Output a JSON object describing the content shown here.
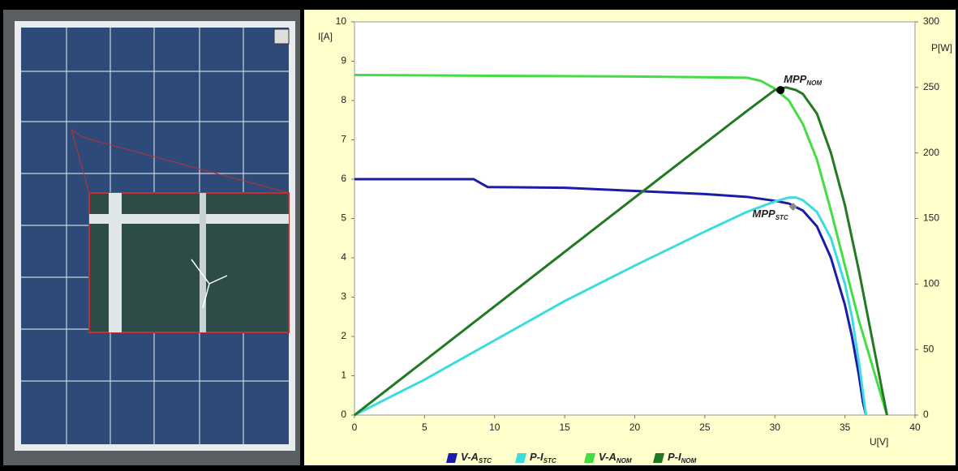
{
  "chart_data": {
    "type": "line",
    "xlabel": "U[V]",
    "ylabel": "I[A]",
    "y2label": "P[W]",
    "xlim": [
      0,
      40
    ],
    "xticks": [
      0,
      5,
      10,
      15,
      20,
      25,
      30,
      35,
      40
    ],
    "ylim": [
      0,
      10
    ],
    "yticks": [
      0,
      1,
      2,
      3,
      4,
      5,
      6,
      7,
      8,
      9,
      10
    ],
    "y2lim": [
      0,
      300
    ],
    "y2ticks": [
      0,
      50,
      100,
      150,
      200,
      250,
      300
    ],
    "grid": false,
    "series": [
      {
        "name": "V-A",
        "subscript": "STC",
        "color": "#1c1ca8",
        "x": [
          0,
          8.5,
          9.5,
          15,
          20,
          25,
          28,
          30,
          31,
          32,
          33,
          34,
          35,
          35.5,
          36,
          36.3,
          36.5
        ],
        "values": [
          6,
          6,
          5.8,
          5.78,
          5.7,
          5.62,
          5.55,
          5.45,
          5.38,
          5.2,
          4.8,
          4,
          2.8,
          2,
          1,
          0.3,
          0
        ]
      },
      {
        "name": "P-I",
        "subscript": "STC",
        "color": "#3ddcdc",
        "axis": "y2",
        "x": [
          0,
          5,
          10,
          15,
          20,
          25,
          28,
          30,
          31,
          31.5,
          32,
          33,
          34,
          35,
          35.5,
          36,
          36.5
        ],
        "values": [
          0,
          27,
          57,
          87,
          114,
          140,
          155,
          163,
          166,
          166,
          164,
          155,
          135,
          100,
          75,
          40,
          0
        ]
      },
      {
        "name": "V-A",
        "subscript": "NOM",
        "color": "#44dd44",
        "x": [
          0,
          10,
          20,
          28,
          29,
          30,
          31,
          32,
          33,
          34,
          35,
          36,
          37,
          38
        ],
        "values": [
          8.65,
          8.63,
          8.61,
          8.58,
          8.5,
          8.3,
          8,
          7.4,
          6.5,
          5.2,
          3.8,
          2.4,
          1.2,
          0
        ]
      },
      {
        "name": "P-I",
        "subscript": "NOM",
        "color": "#217a21",
        "axis": "y2",
        "x": [
          0,
          10,
          20,
          28,
          30,
          30.8,
          31.5,
          32,
          33,
          34,
          35,
          36,
          37,
          38
        ],
        "values": [
          0,
          83,
          166,
          232,
          248,
          250,
          248,
          245,
          230,
          200,
          160,
          110,
          55,
          0
        ]
      }
    ],
    "annotations": [
      {
        "text": "MPP",
        "subscript": "NOM",
        "x": 30.4,
        "y": 248,
        "axis": "y2",
        "color": "#000000"
      },
      {
        "text": "MPP",
        "subscript": "STC",
        "x": 31.3,
        "y": 159,
        "axis": "y2",
        "color": "#888888"
      }
    ]
  }
}
